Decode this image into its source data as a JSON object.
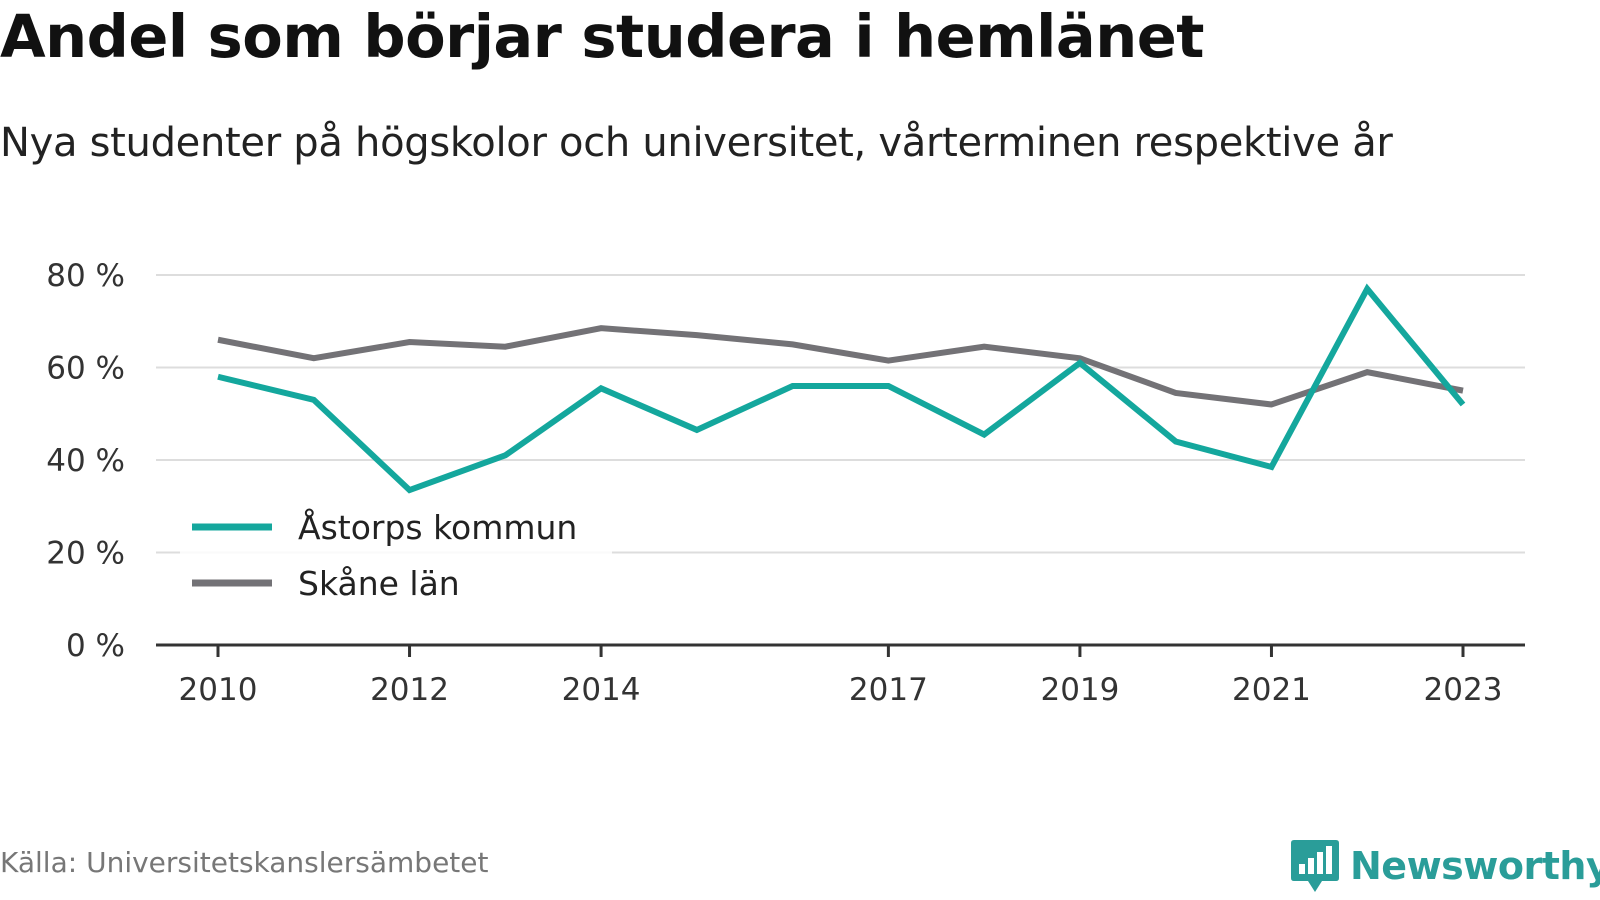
{
  "title": "Andel som börjar studera i hemlänet",
  "subtitle": "Nya studenter på högskolor och universitet, vårterminen respektive år",
  "source": "Källa: Universitetskanslersämbetet",
  "brand": "Newsworthy",
  "colors": {
    "primary": "#14a79d",
    "secondary": "#737276",
    "grid": "#dddddd",
    "axis": "#333333",
    "brand": "#2a9d99"
  },
  "chart_data": {
    "type": "line",
    "x": [
      2010,
      2011,
      2012,
      2013,
      2014,
      2015,
      2016,
      2017,
      2018,
      2019,
      2020,
      2021,
      2022,
      2023
    ],
    "x_tick_labels": [
      "2010",
      "2012",
      "2014",
      "2017",
      "2019",
      "2021",
      "2023"
    ],
    "x_ticks": [
      2010,
      2012,
      2014,
      2017,
      2019,
      2021,
      2023
    ],
    "y_ticks": [
      0,
      20,
      40,
      60,
      80
    ],
    "y_tick_labels": [
      "0 %",
      "20 %",
      "40 %",
      "60 %",
      "80 %"
    ],
    "ylim": [
      0,
      80
    ],
    "grid": true,
    "legend_position": "bottom-left",
    "series": [
      {
        "name": "Åstorps kommun",
        "color": "#14a79d",
        "values": [
          58,
          53,
          33.5,
          41,
          55.5,
          46.5,
          56,
          56,
          45.5,
          61,
          44,
          38.5,
          77,
          52
        ]
      },
      {
        "name": "Skåne län",
        "color": "#737276",
        "values": [
          66,
          62,
          65.5,
          64.5,
          68.5,
          67,
          65,
          61.5,
          64.5,
          62,
          54.5,
          52,
          59,
          55
        ]
      }
    ]
  }
}
